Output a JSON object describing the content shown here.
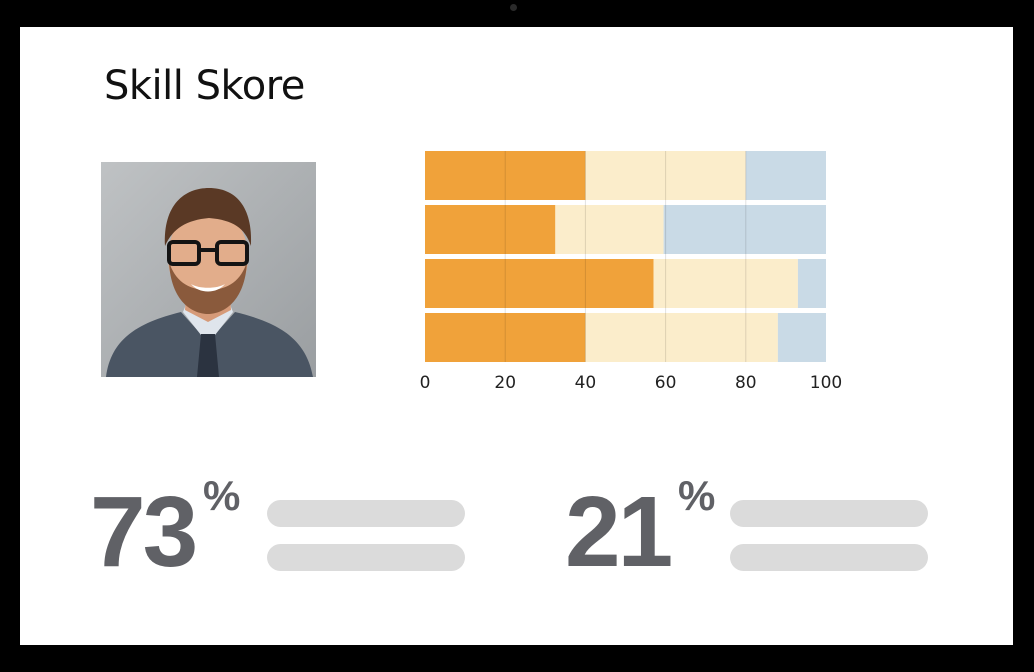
{
  "app": {
    "title": "Skill Skore"
  },
  "profile": {
    "avatar_icon": "person-photo-icon"
  },
  "chart_data": {
    "type": "bar",
    "orientation": "horizontal",
    "stacked": true,
    "xlim": [
      0,
      100
    ],
    "xticks": [
      "0",
      "20",
      "40",
      "60",
      "80",
      "100"
    ],
    "grid": true,
    "categories": [
      "",
      "",
      "",
      ""
    ],
    "series": [
      {
        "color": "#F0A23A",
        "values": [
          40,
          32.5,
          57,
          40
        ]
      },
      {
        "color": "#FBEDCB",
        "values": [
          40,
          27,
          36,
          48
        ]
      },
      {
        "color": "#C9DAE6",
        "values": [
          20,
          40.5,
          7,
          12
        ]
      }
    ]
  },
  "stats": [
    {
      "value": "73",
      "unit": "%"
    },
    {
      "value": "21",
      "unit": "%"
    }
  ]
}
